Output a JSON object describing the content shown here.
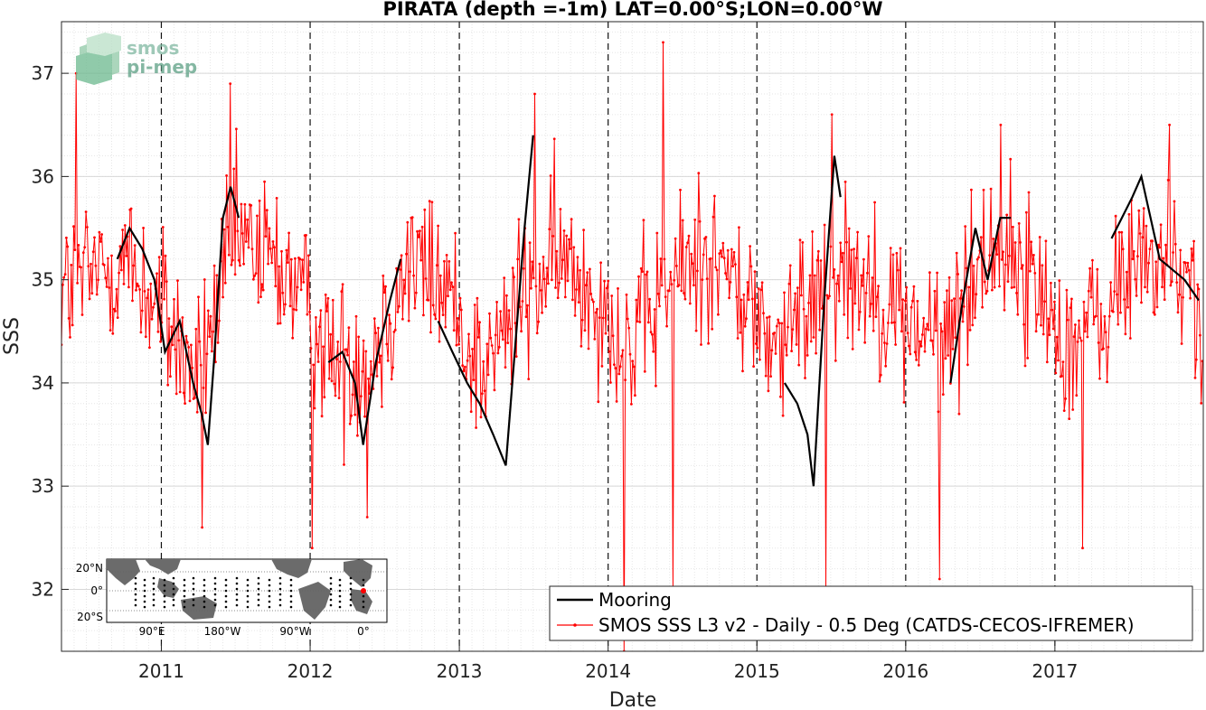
{
  "chart_data": {
    "type": "line",
    "title": "PIRATA (depth =-1m) LAT=0.00°S;LON=0.00°W",
    "xlabel": "Date",
    "ylabel": "SSS",
    "x_range": [
      "2010-05-01",
      "2017-12-31"
    ],
    "ylim": [
      31.4,
      37.5
    ],
    "x_ticks": [
      "2011",
      "2012",
      "2013",
      "2014",
      "2015",
      "2016",
      "2017"
    ],
    "y_ticks": [
      32,
      33,
      34,
      35,
      36,
      37
    ],
    "grid": true,
    "minor_grid": true,
    "year_boundaries_dashed": true,
    "legend_position": "bottom-right",
    "series": [
      {
        "name": "Mooring",
        "color": "#000000",
        "style": "line",
        "points": [
          [
            "2010-09-15",
            35.2
          ],
          [
            "2010-10-15",
            35.5
          ],
          [
            "2010-11-15",
            35.3
          ],
          [
            "2010-12-15",
            35.0
          ],
          [
            "2011-01-10",
            34.3
          ],
          [
            "2011-02-15",
            34.6
          ],
          [
            "2011-03-20",
            34.0
          ],
          [
            "2011-04-10",
            33.7
          ],
          [
            "2011-04-25",
            33.4
          ],
          [
            "2011-05-10",
            34.2
          ],
          [
            "2011-06-01",
            35.6
          ],
          [
            "2011-06-20",
            35.9
          ],
          [
            "2011-07-10",
            35.6
          ],
          [
            "2012-02-15",
            34.2
          ],
          [
            "2012-03-20",
            34.3
          ],
          [
            "2012-04-20",
            34.0
          ],
          [
            "2012-05-10",
            33.4
          ],
          [
            "2012-06-10",
            34.2
          ],
          [
            "2012-07-15",
            34.8
          ],
          [
            "2012-08-10",
            35.2
          ],
          [
            "2012-11-10",
            34.6
          ],
          [
            "2012-12-15",
            34.3
          ],
          [
            "2013-01-20",
            34.0
          ],
          [
            "2013-02-20",
            33.8
          ],
          [
            "2013-03-25",
            33.5
          ],
          [
            "2013-04-25",
            33.2
          ],
          [
            "2013-05-15",
            34.2
          ],
          [
            "2013-06-10",
            35.5
          ],
          [
            "2013-07-01",
            36.4
          ],
          [
            "2015-03-10",
            34.0
          ],
          [
            "2015-04-10",
            33.8
          ],
          [
            "2015-05-05",
            33.5
          ],
          [
            "2015-05-20",
            33.0
          ],
          [
            "2015-06-15",
            34.8
          ],
          [
            "2015-07-10",
            36.2
          ],
          [
            "2015-07-25",
            35.8
          ],
          [
            "2016-04-20",
            34.0
          ],
          [
            "2016-05-20",
            34.8
          ],
          [
            "2016-06-20",
            35.5
          ],
          [
            "2016-07-20",
            35.0
          ],
          [
            "2016-08-20",
            35.6
          ],
          [
            "2016-09-15",
            35.6
          ],
          [
            "2017-05-20",
            35.4
          ],
          [
            "2017-07-10",
            35.8
          ],
          [
            "2017-08-01",
            36.0
          ],
          [
            "2017-09-15",
            35.2
          ],
          [
            "2017-11-15",
            35.0
          ],
          [
            "2017-12-20",
            34.8
          ]
        ]
      },
      {
        "name": "SMOS SSS L3 v2 - Daily - 0.5 Deg (CATDS-CECOS-IFREMER)",
        "color": "#ff0000",
        "style": "line+markers",
        "sampling": "daily, ~1 point per 3 days shown",
        "seasonal_mean": [
          [
            "2010-05-01",
            34.9
          ],
          [
            "2010-10-01",
            35.2
          ],
          [
            "2011-01-01",
            34.7
          ],
          [
            "2011-04-01",
            34.0
          ],
          [
            "2011-07-01",
            35.4
          ],
          [
            "2011-11-01",
            35.1
          ],
          [
            "2012-03-01",
            34.2
          ],
          [
            "2012-06-01",
            34.3
          ],
          [
            "2012-09-01",
            35.2
          ],
          [
            "2012-12-01",
            34.9
          ],
          [
            "2013-03-01",
            34.1
          ],
          [
            "2013-06-01",
            34.8
          ],
          [
            "2013-09-01",
            35.2
          ],
          [
            "2013-12-01",
            34.9
          ],
          [
            "2014-03-01",
            34.3
          ],
          [
            "2014-06-01",
            35.0
          ],
          [
            "2014-09-01",
            35.3
          ],
          [
            "2014-12-01",
            34.8
          ],
          [
            "2015-03-01",
            34.3
          ],
          [
            "2015-07-01",
            35.2
          ],
          [
            "2015-10-01",
            35.0
          ],
          [
            "2016-01-01",
            34.6
          ],
          [
            "2016-04-01",
            34.4
          ],
          [
            "2016-08-01",
            35.4
          ],
          [
            "2016-11-01",
            35.0
          ],
          [
            "2017-02-01",
            34.4
          ],
          [
            "2017-05-01",
            34.6
          ],
          [
            "2017-08-01",
            35.3
          ],
          [
            "2017-12-31",
            34.8
          ]
        ],
        "noise_amplitude": 0.75,
        "extremes": [
          [
            "2010-06-05",
            37.0
          ],
          [
            "2011-04-10",
            32.6
          ],
          [
            "2011-06-20",
            36.9
          ],
          [
            "2012-01-05",
            32.4
          ],
          [
            "2012-05-20",
            32.7
          ],
          [
            "2013-07-05",
            36.8
          ],
          [
            "2014-02-10",
            31.4
          ],
          [
            "2014-05-15",
            37.3
          ],
          [
            "2014-06-10",
            32.0
          ],
          [
            "2015-06-20",
            32.0
          ],
          [
            "2015-07-05",
            36.6
          ],
          [
            "2016-03-25",
            32.1
          ],
          [
            "2016-08-20",
            36.5
          ],
          [
            "2017-03-10",
            32.4
          ],
          [
            "2017-10-10",
            36.5
          ]
        ]
      }
    ]
  },
  "inset_map": {
    "lat_labels": [
      "20°N",
      "0°",
      "20°S"
    ],
    "lon_labels": [
      "90°E",
      "180°W",
      "90°W",
      "0°"
    ],
    "marker_color": "#ff0000"
  },
  "logo": {
    "line1": "smos",
    "line2": "pi-mep"
  }
}
